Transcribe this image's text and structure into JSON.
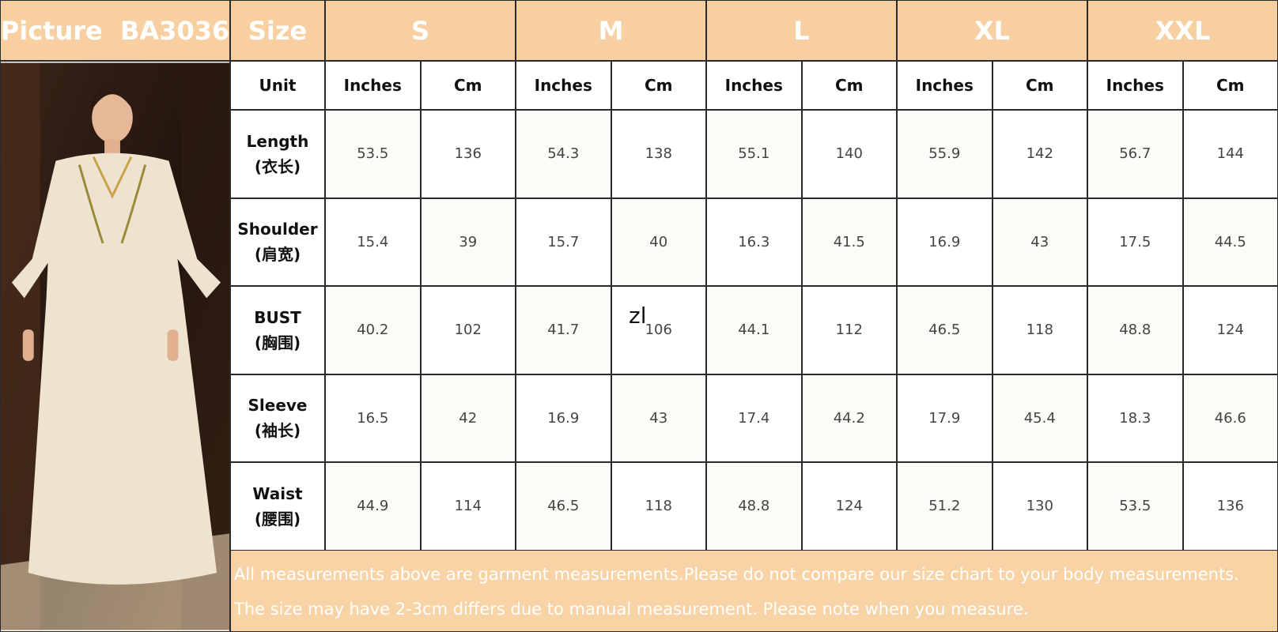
{
  "header": {
    "picture_label": "Picture  BA3036",
    "size_label": "Size",
    "sizes": [
      "S",
      "M",
      "L",
      "XL",
      "XXL"
    ]
  },
  "units": {
    "label": "Unit",
    "columns": [
      "Inches",
      "Cm",
      "Inches",
      "Cm",
      "Inches",
      "Cm",
      "Inches",
      "Cm",
      "Inches",
      "Cm"
    ]
  },
  "rows": [
    {
      "name": "Length",
      "name_cn": "(衣长)",
      "values": [
        "53.5",
        "136",
        "54.3",
        "138",
        "55.1",
        "140",
        "55.9",
        "142",
        "56.7",
        "144"
      ]
    },
    {
      "name": "Shoulder",
      "name_cn": "(肩宽)",
      "values": [
        "15.4",
        "39",
        "15.7",
        "40",
        "16.3",
        "41.5",
        "16.9",
        "43",
        "17.5",
        "44.5"
      ]
    },
    {
      "name": "BUST",
      "name_cn": "(胸围)",
      "values": [
        "40.2",
        "102",
        "41.7",
        "106",
        "44.1",
        "112",
        "46.5",
        "118",
        "48.8",
        "124"
      ]
    },
    {
      "name": "Sleeve",
      "name_cn": "(袖长)",
      "values": [
        "16.5",
        "42",
        "16.9",
        "43",
        "17.4",
        "44.2",
        "17.9",
        "45.4",
        "18.3",
        "46.6"
      ]
    },
    {
      "name": "Waist",
      "name_cn": "(腰围)",
      "values": [
        "44.9",
        "114",
        "46.5",
        "118",
        "48.8",
        "124",
        "51.2",
        "130",
        "53.5",
        "136"
      ]
    }
  ],
  "notes": [
    "All measurements above are garment measurements.Please do not compare our size chart to your body measurements.",
    "The size may have 2-3cm differs due to manual measurement. Please note when you measure."
  ],
  "annotation": "zl"
}
